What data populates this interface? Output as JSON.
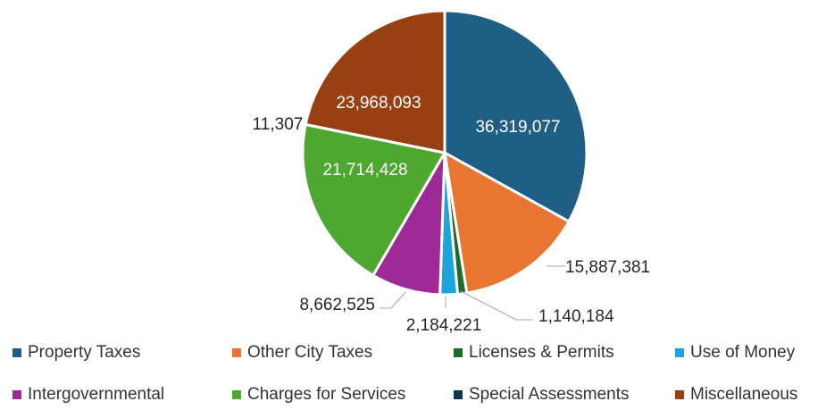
{
  "chart_data": {
    "type": "pie",
    "title": "",
    "categories": [
      "Property Taxes",
      "Other City Taxes",
      "Licenses & Permits",
      "Use of Money",
      "Intergovernmental",
      "Charges for Services",
      "Special Assessments",
      "Miscellaneous"
    ],
    "values": [
      36319077,
      15887381,
      1140184,
      2184221,
      8662525,
      21714428,
      11307,
      23968093
    ],
    "labels": [
      "36,319,077",
      "15,887,381",
      "1,140,184",
      "2,184,221",
      "8,662,525",
      "21,714,428",
      "11,307",
      "23,968,093"
    ],
    "colors": [
      "#1f5f86",
      "#e97532",
      "#1f6b2e",
      "#1fa3dc",
      "#9e2a97",
      "#4ea72e",
      "#0f3550",
      "#984012"
    ],
    "legend_position": "bottom"
  }
}
